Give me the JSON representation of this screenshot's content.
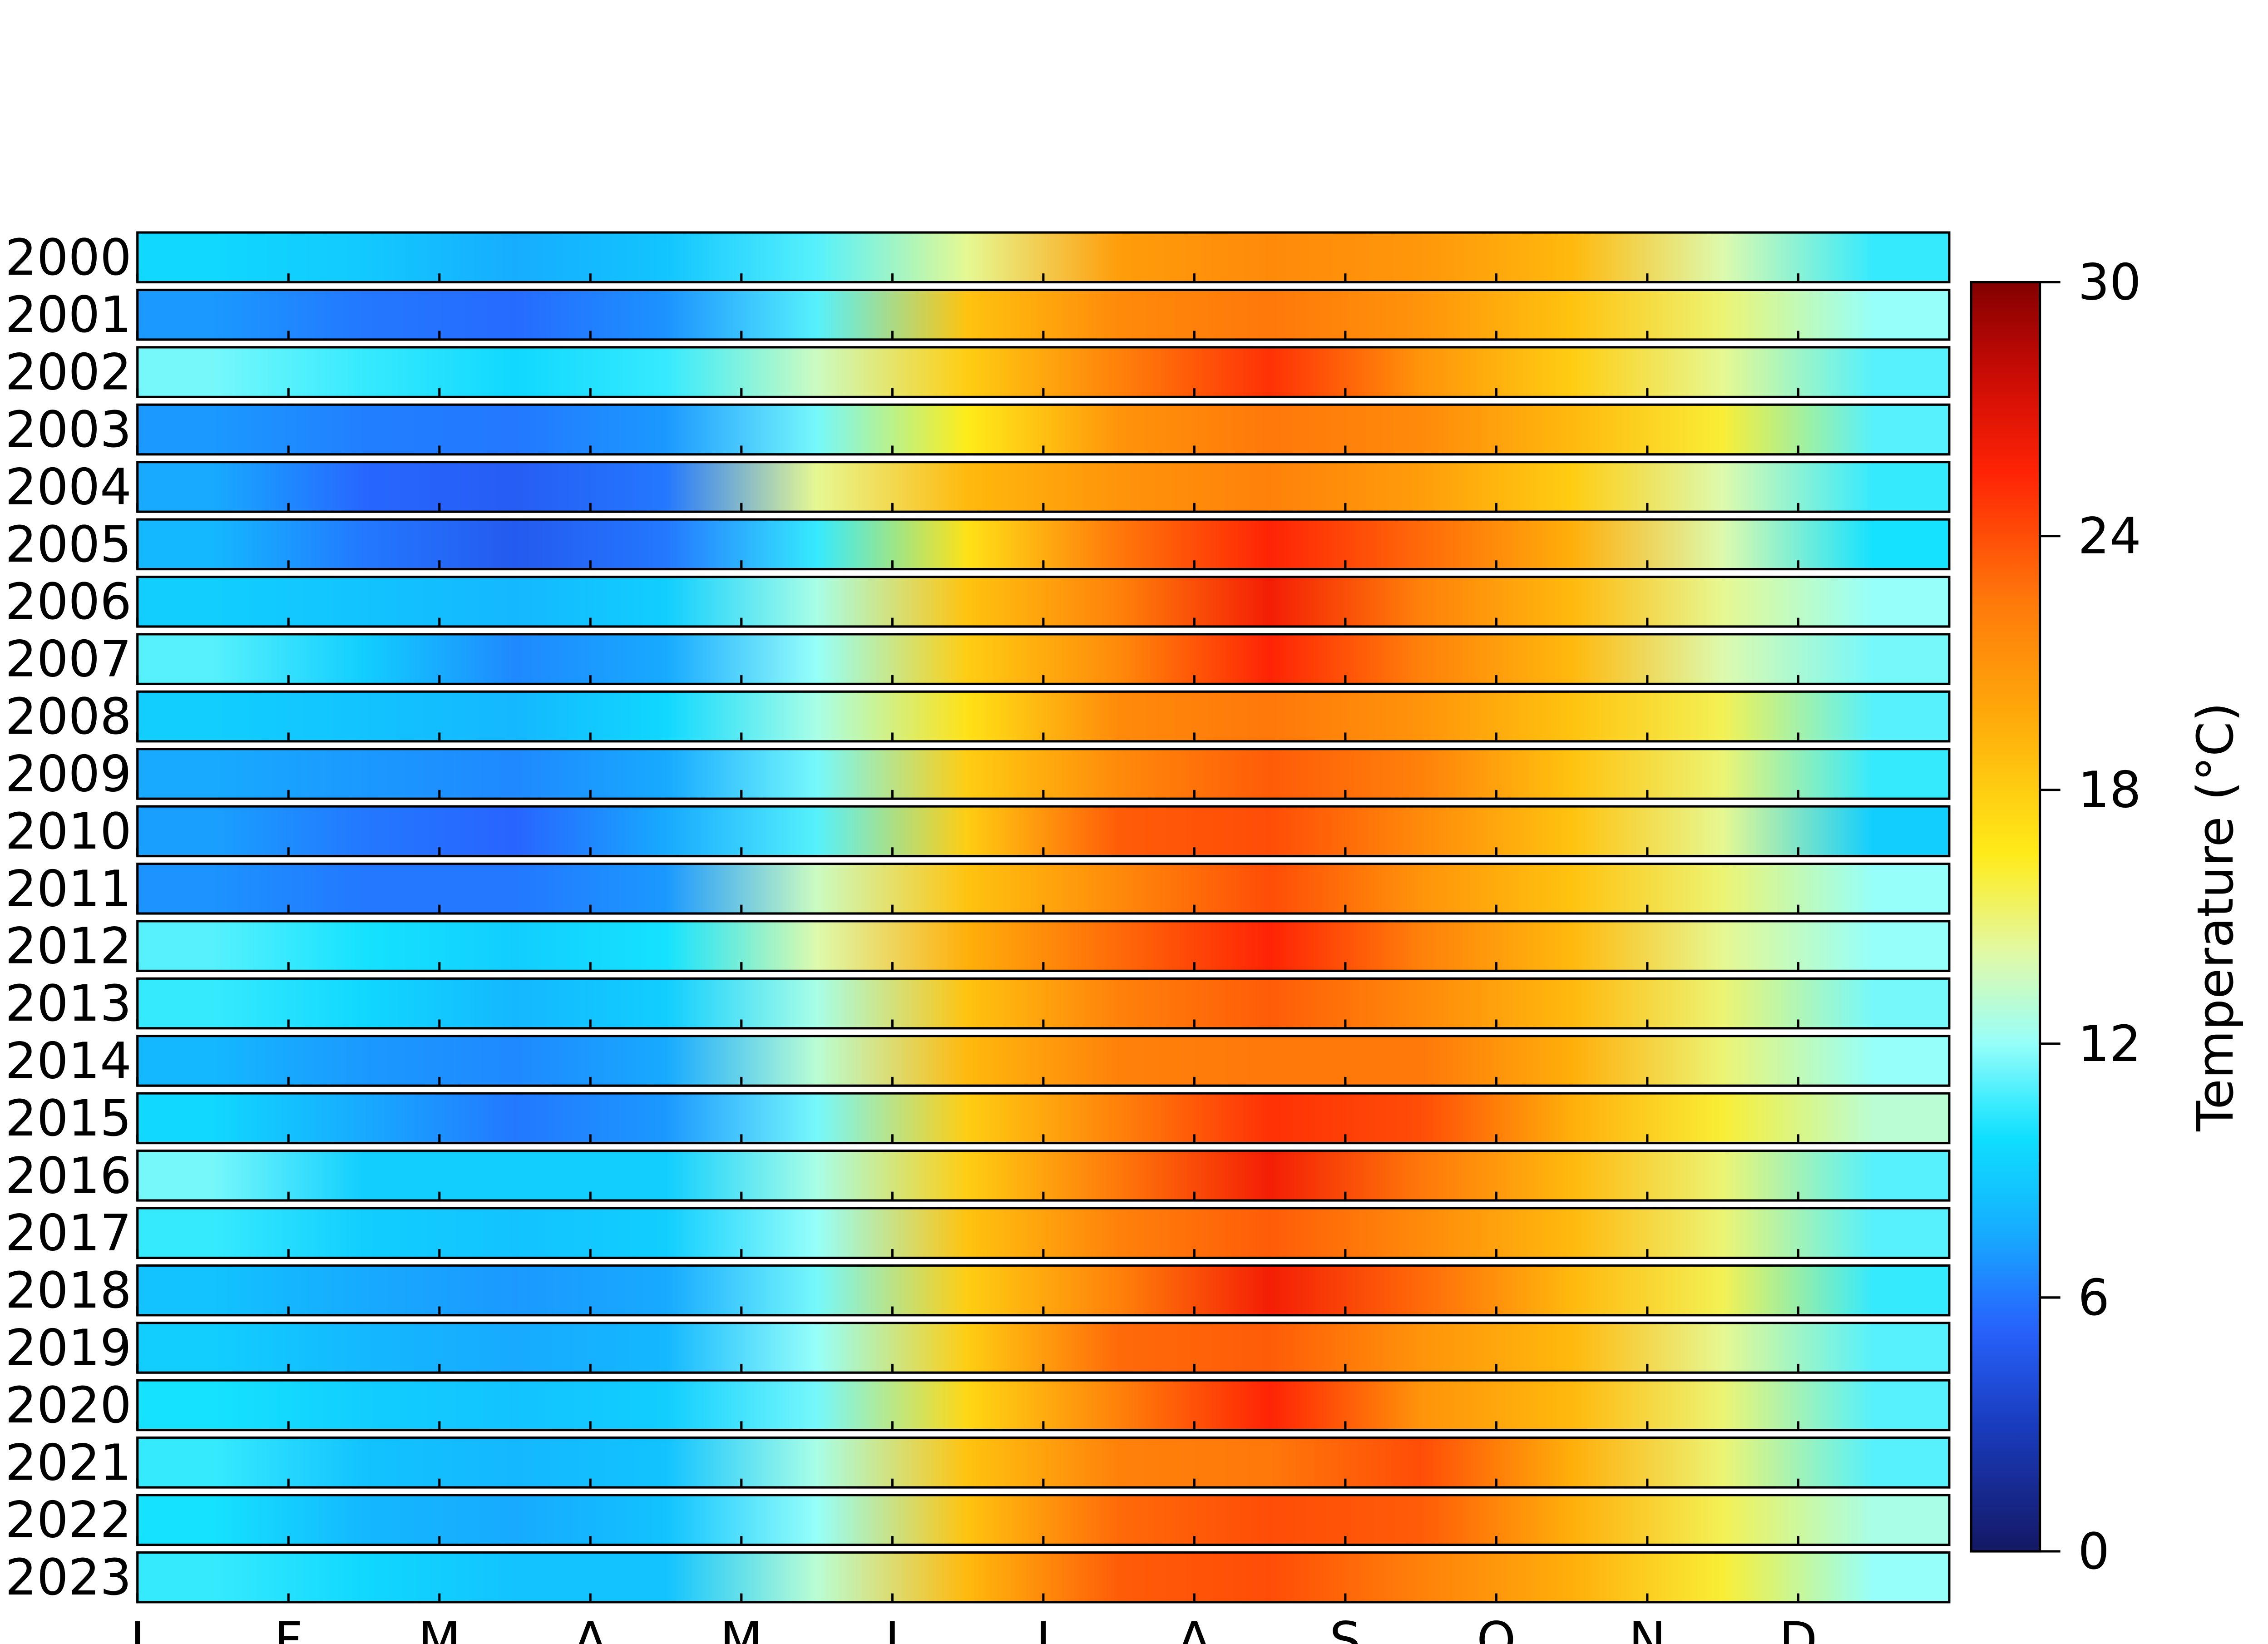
{
  "chart_data": {
    "type": "heatmap",
    "title": "",
    "xlabel": "",
    "ylabel": "",
    "rows": [
      "2000",
      "2001",
      "2002",
      "2003",
      "2004",
      "2005",
      "2006",
      "2007",
      "2008",
      "2009",
      "2010",
      "2011",
      "2012",
      "2013",
      "2014",
      "2015",
      "2016",
      "2017",
      "2018",
      "2019",
      "2020",
      "2021",
      "2022",
      "2023"
    ],
    "month_labels": [
      "J",
      "F",
      "M",
      "A",
      "M",
      "J",
      "J",
      "A",
      "S",
      "O",
      "N",
      "D"
    ],
    "colorbar": {
      "label": "Temperature (°C)",
      "min": 0,
      "max": 30,
      "ticks": [
        "0",
        "6",
        "12",
        "18",
        "24",
        "30"
      ]
    },
    "colormap": "jet-like",
    "row_profiles": [
      {
        "year": "2000",
        "temps": [
          9.5,
          8.8,
          7.6,
          8.6,
          11.0,
          14.5,
          20.5,
          21.5,
          20.8,
          19.0,
          14.0,
          10.5
        ]
      },
      {
        "year": "2001",
        "temps": [
          7.0,
          6.0,
          5.6,
          6.8,
          11.0,
          18.5,
          21.5,
          22.5,
          21.0,
          18.5,
          15.0,
          12.0
        ]
      },
      {
        "year": "2002",
        "temps": [
          11.5,
          10.5,
          9.5,
          10.5,
          13.5,
          18.0,
          22.0,
          25.0,
          21.0,
          18.0,
          14.5,
          11.0
        ]
      },
      {
        "year": "2003",
        "temps": [
          7.0,
          6.2,
          6.0,
          7.0,
          11.5,
          16.5,
          21.0,
          22.5,
          21.5,
          19.0,
          16.0,
          11.0
        ]
      },
      {
        "year": "2004",
        "temps": [
          7.5,
          5.5,
          5.0,
          6.0,
          14.5,
          19.0,
          21.0,
          22.0,
          20.5,
          18.0,
          14.0,
          10.5
        ]
      },
      {
        "year": "2005",
        "temps": [
          8.0,
          6.0,
          4.8,
          6.0,
          10.5,
          17.0,
          22.5,
          25.5,
          23.0,
          19.5,
          14.0,
          10.0
        ]
      },
      {
        "year": "2006",
        "temps": [
          9.0,
          8.5,
          8.0,
          9.0,
          12.5,
          18.5,
          22.0,
          26.0,
          22.0,
          19.0,
          14.5,
          12.0
        ]
      },
      {
        "year": "2007",
        "temps": [
          11.0,
          9.0,
          6.5,
          7.5,
          12.0,
          18.0,
          21.5,
          25.5,
          22.0,
          19.0,
          14.0,
          11.5
        ]
      },
      {
        "year": "2008",
        "temps": [
          9.0,
          8.5,
          8.0,
          9.5,
          12.5,
          17.0,
          21.5,
          22.5,
          21.0,
          18.5,
          15.5,
          11.0
        ]
      },
      {
        "year": "2009",
        "temps": [
          7.5,
          7.0,
          6.5,
          7.5,
          11.5,
          18.0,
          21.5,
          23.5,
          22.0,
          18.5,
          15.0,
          10.5
        ]
      },
      {
        "year": "2010",
        "temps": [
          7.2,
          6.0,
          5.4,
          7.5,
          11.0,
          18.0,
          23.5,
          24.0,
          21.5,
          18.5,
          14.5,
          9.0
        ]
      },
      {
        "year": "2011",
        "temps": [
          6.8,
          6.0,
          6.0,
          7.0,
          13.5,
          18.5,
          21.5,
          24.0,
          21.0,
          18.5,
          15.0,
          12.0
        ]
      },
      {
        "year": "2012",
        "temps": [
          11.0,
          10.0,
          9.0,
          10.0,
          14.0,
          19.5,
          23.0,
          25.5,
          22.0,
          19.0,
          14.5,
          12.0
        ]
      },
      {
        "year": "2013",
        "temps": [
          10.5,
          9.5,
          8.0,
          9.0,
          12.5,
          18.5,
          22.0,
          23.5,
          21.5,
          19.0,
          15.0,
          11.5
        ]
      },
      {
        "year": "2014",
        "temps": [
          8.0,
          7.0,
          6.5,
          7.5,
          13.0,
          19.0,
          22.0,
          22.5,
          22.5,
          19.5,
          15.0,
          12.0
        ]
      },
      {
        "year": "2015",
        "temps": [
          9.5,
          7.5,
          6.0,
          7.0,
          11.5,
          18.0,
          22.0,
          25.0,
          24.0,
          19.5,
          16.0,
          13.0
        ]
      },
      {
        "year": "2016",
        "temps": [
          11.5,
          9.0,
          9.0,
          9.0,
          12.5,
          18.0,
          22.5,
          26.0,
          22.5,
          19.0,
          15.0,
          11.0
        ]
      },
      {
        "year": "2017",
        "temps": [
          10.5,
          9.0,
          8.5,
          9.0,
          12.0,
          18.5,
          22.0,
          23.5,
          21.5,
          19.0,
          15.0,
          11.0
        ]
      },
      {
        "year": "2018",
        "temps": [
          8.5,
          7.5,
          7.0,
          7.5,
          11.5,
          18.0,
          22.0,
          26.0,
          23.0,
          19.0,
          15.5,
          10.5
        ]
      },
      {
        "year": "2019",
        "temps": [
          9.0,
          8.0,
          7.5,
          8.0,
          12.0,
          18.0,
          23.0,
          23.5,
          21.0,
          19.0,
          14.5,
          11.0
        ]
      },
      {
        "year": "2020",
        "temps": [
          10.0,
          9.0,
          8.5,
          9.0,
          11.5,
          17.5,
          22.0,
          25.5,
          21.0,
          19.0,
          15.0,
          11.0
        ]
      },
      {
        "year": "2021",
        "temps": [
          10.5,
          8.5,
          8.0,
          8.5,
          12.5,
          18.5,
          22.0,
          22.5,
          24.0,
          19.5,
          15.0,
          11.0
        ]
      },
      {
        "year": "2022",
        "temps": [
          10.0,
          8.0,
          7.5,
          8.5,
          12.0,
          18.5,
          23.0,
          24.0,
          23.5,
          19.5,
          15.5,
          12.5
        ]
      },
      {
        "year": "2023",
        "temps": [
          10.5,
          9.5,
          8.5,
          8.5,
          13.0,
          19.0,
          23.5,
          24.0,
          22.0,
          19.5,
          16.0,
          12.0
        ]
      }
    ]
  }
}
